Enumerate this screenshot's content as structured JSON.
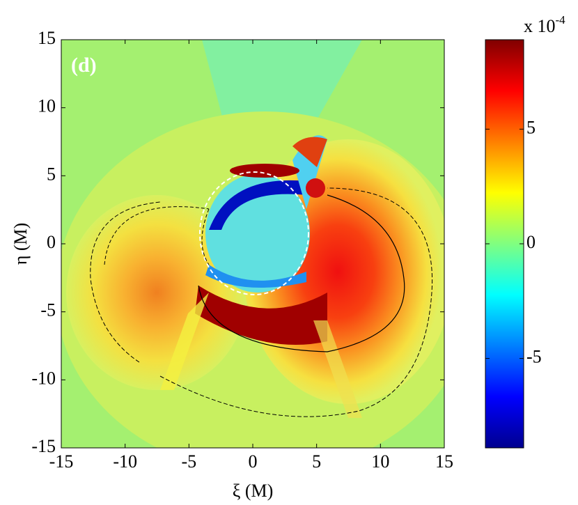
{
  "chart_data": {
    "type": "heatmap",
    "panel_label": "(d)",
    "x_label": "ξ (M)",
    "y_label": "η (M)",
    "xlim": [
      -15,
      15
    ],
    "xticks": [
      -15,
      -10,
      -5,
      0,
      5,
      10,
      15
    ],
    "ylim": [
      -15,
      15
    ],
    "yticks": [
      -15,
      -10,
      -5,
      0,
      5,
      10,
      15
    ],
    "colormap": "jet",
    "colorbar": {
      "clim": [
        -8.9,
        8.9
      ],
      "ticks": [
        -5,
        0,
        5
      ],
      "scale_base": "x 10",
      "scale_exponent": "-4"
    }
  }
}
